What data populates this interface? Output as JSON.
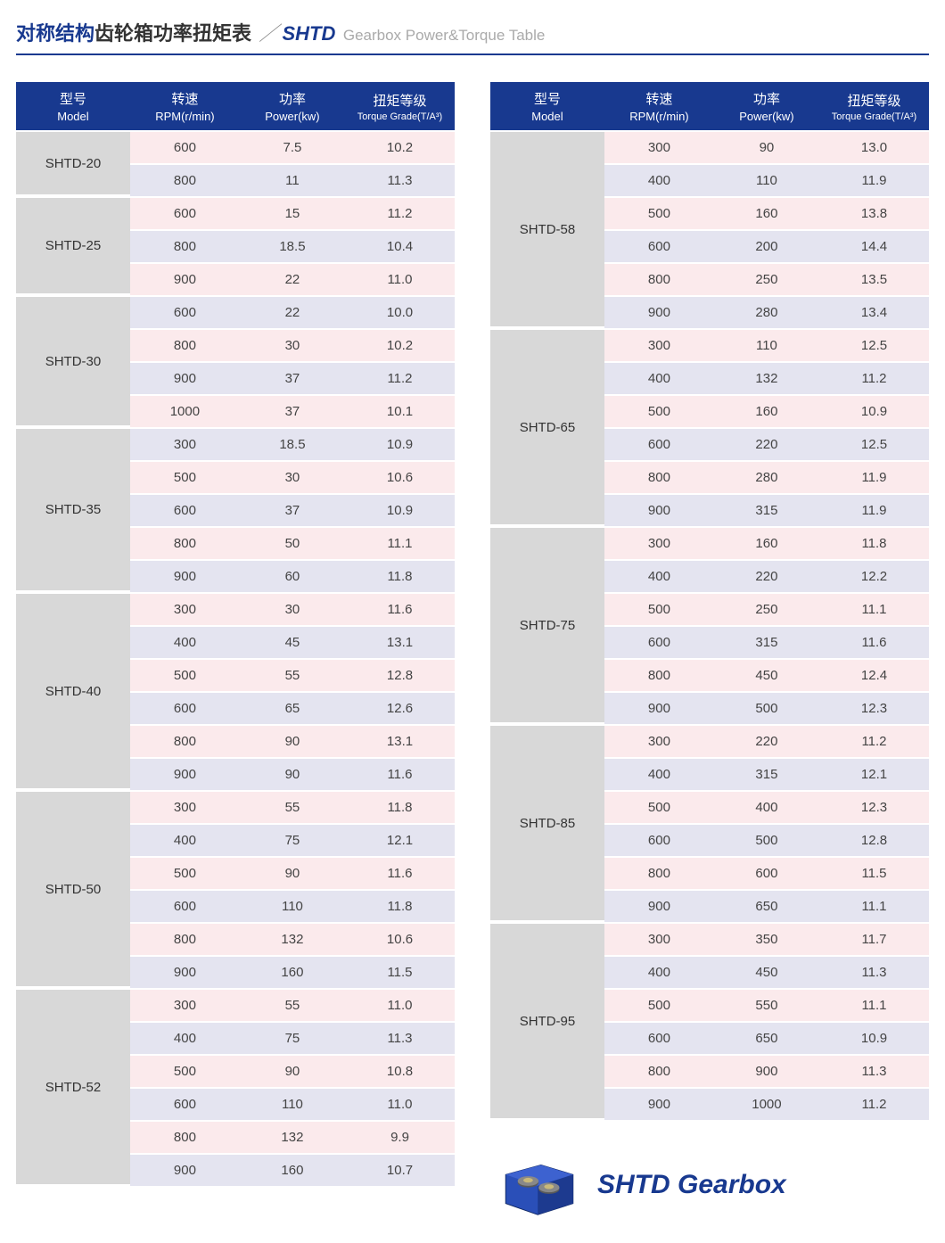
{
  "title": {
    "cn_bold": "对称结构",
    "cn_rest": "齿轮箱功率扭矩表",
    "slash": "／",
    "code": "SHTD",
    "en": "Gearbox Power&Torque Table"
  },
  "columns": [
    {
      "cn": "型号",
      "en": "Model"
    },
    {
      "cn": "转速",
      "en": "RPM(r/min)"
    },
    {
      "cn": "功率",
      "en": "Power(kw)"
    },
    {
      "cn": "扭矩等级",
      "en": "Torque Grade(T/A³)"
    }
  ],
  "left": [
    {
      "model": "SHTD-20",
      "rows": [
        {
          "rpm": "600",
          "pwr": "7.5",
          "trq": "10.2"
        },
        {
          "rpm": "800",
          "pwr": "11",
          "trq": "11.3"
        }
      ]
    },
    {
      "model": "SHTD-25",
      "rows": [
        {
          "rpm": "600",
          "pwr": "15",
          "trq": "11.2"
        },
        {
          "rpm": "800",
          "pwr": "18.5",
          "trq": "10.4"
        },
        {
          "rpm": "900",
          "pwr": "22",
          "trq": "11.0"
        }
      ]
    },
    {
      "model": "SHTD-30",
      "rows": [
        {
          "rpm": "600",
          "pwr": "22",
          "trq": "10.0"
        },
        {
          "rpm": "800",
          "pwr": "30",
          "trq": "10.2"
        },
        {
          "rpm": "900",
          "pwr": "37",
          "trq": "11.2"
        },
        {
          "rpm": "1000",
          "pwr": "37",
          "trq": "10.1"
        }
      ]
    },
    {
      "model": "SHTD-35",
      "rows": [
        {
          "rpm": "300",
          "pwr": "18.5",
          "trq": "10.9"
        },
        {
          "rpm": "500",
          "pwr": "30",
          "trq": "10.6"
        },
        {
          "rpm": "600",
          "pwr": "37",
          "trq": "10.9"
        },
        {
          "rpm": "800",
          "pwr": "50",
          "trq": "11.1"
        },
        {
          "rpm": "900",
          "pwr": "60",
          "trq": "11.8"
        }
      ]
    },
    {
      "model": "SHTD-40",
      "rows": [
        {
          "rpm": "300",
          "pwr": "30",
          "trq": "11.6"
        },
        {
          "rpm": "400",
          "pwr": "45",
          "trq": "13.1"
        },
        {
          "rpm": "500",
          "pwr": "55",
          "trq": "12.8"
        },
        {
          "rpm": "600",
          "pwr": "65",
          "trq": "12.6"
        },
        {
          "rpm": "800",
          "pwr": "90",
          "trq": "13.1"
        },
        {
          "rpm": "900",
          "pwr": "90",
          "trq": "11.6"
        }
      ]
    },
    {
      "model": "SHTD-50",
      "rows": [
        {
          "rpm": "300",
          "pwr": "55",
          "trq": "11.8"
        },
        {
          "rpm": "400",
          "pwr": "75",
          "trq": "12.1"
        },
        {
          "rpm": "500",
          "pwr": "90",
          "trq": "11.6"
        },
        {
          "rpm": "600",
          "pwr": "110",
          "trq": "11.8"
        },
        {
          "rpm": "800",
          "pwr": "132",
          "trq": "10.6"
        },
        {
          "rpm": "900",
          "pwr": "160",
          "trq": "11.5"
        }
      ]
    },
    {
      "model": "SHTD-52",
      "rows": [
        {
          "rpm": "300",
          "pwr": "55",
          "trq": "11.0"
        },
        {
          "rpm": "400",
          "pwr": "75",
          "trq": "11.3"
        },
        {
          "rpm": "500",
          "pwr": "90",
          "trq": "10.8"
        },
        {
          "rpm": "600",
          "pwr": "110",
          "trq": "11.0"
        },
        {
          "rpm": "800",
          "pwr": "132",
          "trq": "9.9"
        },
        {
          "rpm": "900",
          "pwr": "160",
          "trq": "10.7"
        }
      ]
    }
  ],
  "right": [
    {
      "model": "SHTD-58",
      "rows": [
        {
          "rpm": "300",
          "pwr": "90",
          "trq": "13.0"
        },
        {
          "rpm": "400",
          "pwr": "110",
          "trq": "11.9"
        },
        {
          "rpm": "500",
          "pwr": "160",
          "trq": "13.8"
        },
        {
          "rpm": "600",
          "pwr": "200",
          "trq": "14.4"
        },
        {
          "rpm": "800",
          "pwr": "250",
          "trq": "13.5"
        },
        {
          "rpm": "900",
          "pwr": "280",
          "trq": "13.4"
        }
      ]
    },
    {
      "model": "SHTD-65",
      "rows": [
        {
          "rpm": "300",
          "pwr": "110",
          "trq": "12.5"
        },
        {
          "rpm": "400",
          "pwr": "132",
          "trq": "11.2"
        },
        {
          "rpm": "500",
          "pwr": "160",
          "trq": "10.9"
        },
        {
          "rpm": "600",
          "pwr": "220",
          "trq": "12.5"
        },
        {
          "rpm": "800",
          "pwr": "280",
          "trq": "11.9"
        },
        {
          "rpm": "900",
          "pwr": "315",
          "trq": "11.9"
        }
      ]
    },
    {
      "model": "SHTD-75",
      "rows": [
        {
          "rpm": "300",
          "pwr": "160",
          "trq": "11.8"
        },
        {
          "rpm": "400",
          "pwr": "220",
          "trq": "12.2"
        },
        {
          "rpm": "500",
          "pwr": "250",
          "trq": "11.1"
        },
        {
          "rpm": "600",
          "pwr": "315",
          "trq": "11.6"
        },
        {
          "rpm": "800",
          "pwr": "450",
          "trq": "12.4"
        },
        {
          "rpm": "900",
          "pwr": "500",
          "trq": "12.3"
        }
      ]
    },
    {
      "model": "SHTD-85",
      "rows": [
        {
          "rpm": "300",
          "pwr": "220",
          "trq": "11.2"
        },
        {
          "rpm": "400",
          "pwr": "315",
          "trq": "12.1"
        },
        {
          "rpm": "500",
          "pwr": "400",
          "trq": "12.3"
        },
        {
          "rpm": "600",
          "pwr": "500",
          "trq": "12.8"
        },
        {
          "rpm": "800",
          "pwr": "600",
          "trq": "11.5"
        },
        {
          "rpm": "900",
          "pwr": "650",
          "trq": "11.1"
        }
      ]
    },
    {
      "model": "SHTD-95",
      "rows": [
        {
          "rpm": "300",
          "pwr": "350",
          "trq": "11.7"
        },
        {
          "rpm": "400",
          "pwr": "450",
          "trq": "11.3"
        },
        {
          "rpm": "500",
          "pwr": "550",
          "trq": "11.1"
        },
        {
          "rpm": "600",
          "pwr": "650",
          "trq": "10.9"
        },
        {
          "rpm": "800",
          "pwr": "900",
          "trq": "11.3"
        },
        {
          "rpm": "900",
          "pwr": "1000",
          "trq": "11.2"
        }
      ]
    }
  ],
  "badge": "SHTD Gearbox",
  "colors": {
    "header_bg": "#18398f",
    "model_bg": "#d8d8d8",
    "row_odd": "#fbeaec",
    "row_even": "#e4e4f0"
  }
}
